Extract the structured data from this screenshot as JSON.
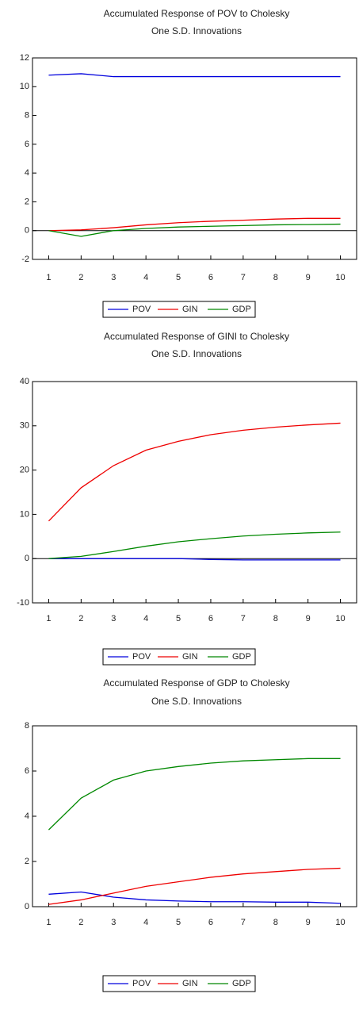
{
  "chart_data": [
    {
      "type": "line",
      "title": "Accumulated Response of POV to Cholesky",
      "subtitle": "One S.D. Innovations",
      "x": [
        1,
        2,
        3,
        4,
        5,
        6,
        7,
        8,
        9,
        10
      ],
      "xlim": [
        0.5,
        10.5
      ],
      "xticks": [
        1,
        2,
        3,
        4,
        5,
        6,
        7,
        8,
        9,
        10
      ],
      "ylim": [
        -2,
        12
      ],
      "yticks": [
        -2,
        0,
        2,
        4,
        6,
        8,
        10,
        12
      ],
      "series": [
        {
          "name": "POV",
          "color": "#0000dd",
          "values": [
            10.8,
            10.9,
            10.7,
            10.7,
            10.7,
            10.7,
            10.7,
            10.7,
            10.7,
            10.7
          ]
        },
        {
          "name": "GIN",
          "color": "#ee0000",
          "values": [
            0,
            0.05,
            0.2,
            0.4,
            0.55,
            0.65,
            0.72,
            0.8,
            0.85,
            0.85
          ]
        },
        {
          "name": "GDP",
          "color": "#008800",
          "values": [
            0,
            -0.4,
            0,
            0.15,
            0.25,
            0.3,
            0.35,
            0.4,
            0.42,
            0.45
          ]
        }
      ]
    },
    {
      "type": "line",
      "title": "Accumulated Response of GINI to Cholesky",
      "subtitle": "One S.D. Innovations",
      "x": [
        1,
        2,
        3,
        4,
        5,
        6,
        7,
        8,
        9,
        10
      ],
      "xlim": [
        0.5,
        10.5
      ],
      "xticks": [
        1,
        2,
        3,
        4,
        5,
        6,
        7,
        8,
        9,
        10
      ],
      "ylim": [
        -10,
        40
      ],
      "yticks": [
        -10,
        0,
        10,
        20,
        30,
        40
      ],
      "series": [
        {
          "name": "POV",
          "color": "#0000dd",
          "values": [
            0,
            0,
            0,
            0,
            0,
            -0.2,
            -0.3,
            -0.3,
            -0.3,
            -0.3
          ]
        },
        {
          "name": "GIN",
          "color": "#ee0000",
          "values": [
            8.5,
            16,
            21,
            24.5,
            26.5,
            28,
            29,
            29.7,
            30.2,
            30.6
          ]
        },
        {
          "name": "GDP",
          "color": "#008800",
          "values": [
            0,
            0.5,
            1.6,
            2.8,
            3.8,
            4.5,
            5.1,
            5.5,
            5.8,
            6.0
          ]
        }
      ]
    },
    {
      "type": "line",
      "title": "Accumulated Response of GDP to Cholesky",
      "subtitle": "One S.D. Innovations",
      "x": [
        1,
        2,
        3,
        4,
        5,
        6,
        7,
        8,
        9,
        10
      ],
      "xlim": [
        0.5,
        10.5
      ],
      "xticks": [
        1,
        2,
        3,
        4,
        5,
        6,
        7,
        8,
        9,
        10
      ],
      "ylim": [
        0,
        8
      ],
      "yticks": [
        0,
        2,
        4,
        6,
        8
      ],
      "series": [
        {
          "name": "POV",
          "color": "#0000dd",
          "values": [
            0.55,
            0.65,
            0.42,
            0.3,
            0.25,
            0.22,
            0.22,
            0.2,
            0.2,
            0.15
          ]
        },
        {
          "name": "GIN",
          "color": "#ee0000",
          "values": [
            0.1,
            0.3,
            0.6,
            0.9,
            1.1,
            1.3,
            1.45,
            1.55,
            1.65,
            1.7
          ]
        },
        {
          "name": "GDP",
          "color": "#008800",
          "values": [
            3.4,
            4.8,
            5.6,
            6.0,
            6.2,
            6.35,
            6.45,
            6.5,
            6.55,
            6.55
          ]
        }
      ]
    }
  ]
}
